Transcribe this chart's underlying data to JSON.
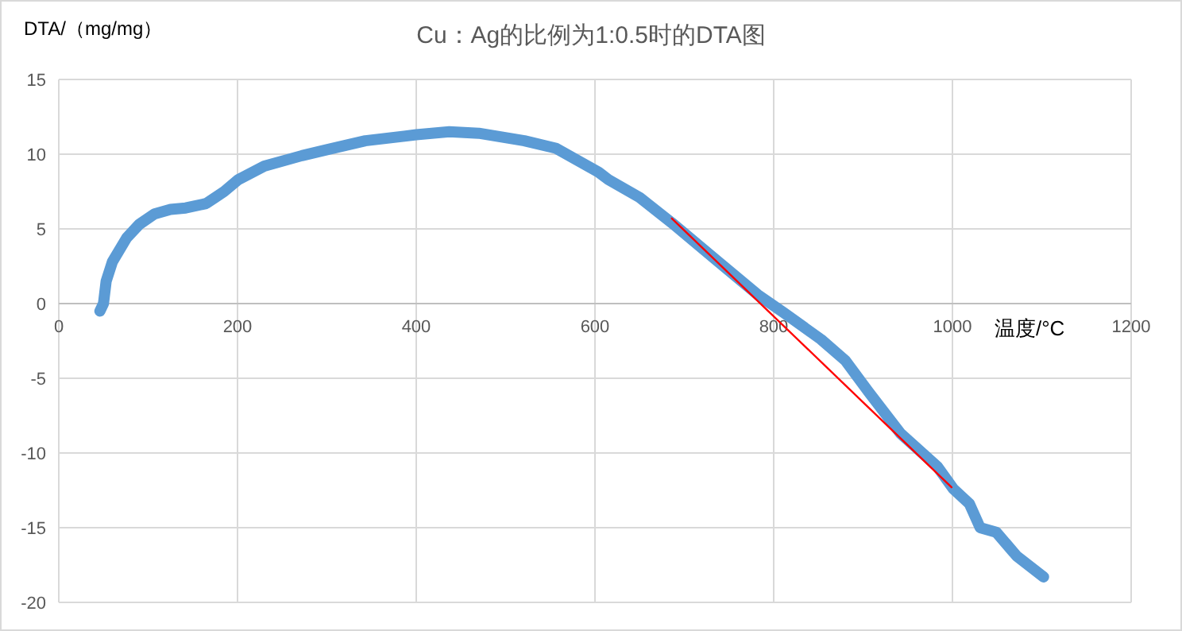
{
  "chart_data": {
    "type": "line",
    "title": "Cu：Ag的比例为1:0.5时的DTA图",
    "xlabel": "温度/°C",
    "ylabel": "DTA/（mg/mg）",
    "xlim": [
      0,
      1200
    ],
    "xticks": [
      0,
      200,
      400,
      600,
      800,
      1000,
      1200
    ],
    "ylim": [
      -20,
      15
    ],
    "yticks": [
      -20,
      -15,
      -10,
      -5,
      0,
      5,
      10,
      15
    ],
    "grid": true,
    "marker": "none",
    "line_style": "solid",
    "series": [
      {
        "color": "#5b9bd5",
        "x": [
          46,
          50,
          53,
          60,
          76,
          90,
          107,
          125,
          142,
          165,
          185,
          201,
          230,
          272,
          300,
          343,
          400,
          437,
          470,
          521,
          556,
          604,
          615,
          650,
          686,
          734,
          782,
          811,
          853,
          880,
          906,
          942,
          983,
          1001,
          1019,
          1031,
          1049,
          1072,
          1102
        ],
        "values": [
          -0.5,
          0,
          1.5,
          2.8,
          4.4,
          5.3,
          6.0,
          6.3,
          6.4,
          6.7,
          7.5,
          8.3,
          9.2,
          9.9,
          10.3,
          10.9,
          11.3,
          11.5,
          11.4,
          10.9,
          10.4,
          8.8,
          8.3,
          7.1,
          5.4,
          3.0,
          0.6,
          -0.6,
          -2.4,
          -3.8,
          -5.9,
          -8.7,
          -10.9,
          -12.4,
          -13.4,
          -15.0,
          -15.3,
          -16.9,
          -18.3
        ]
      },
      {
        "type": "line",
        "color": "#ff0000",
        "x": [
          686,
          999
        ],
        "values": [
          5.7,
          -12.3
        ]
      }
    ]
  }
}
